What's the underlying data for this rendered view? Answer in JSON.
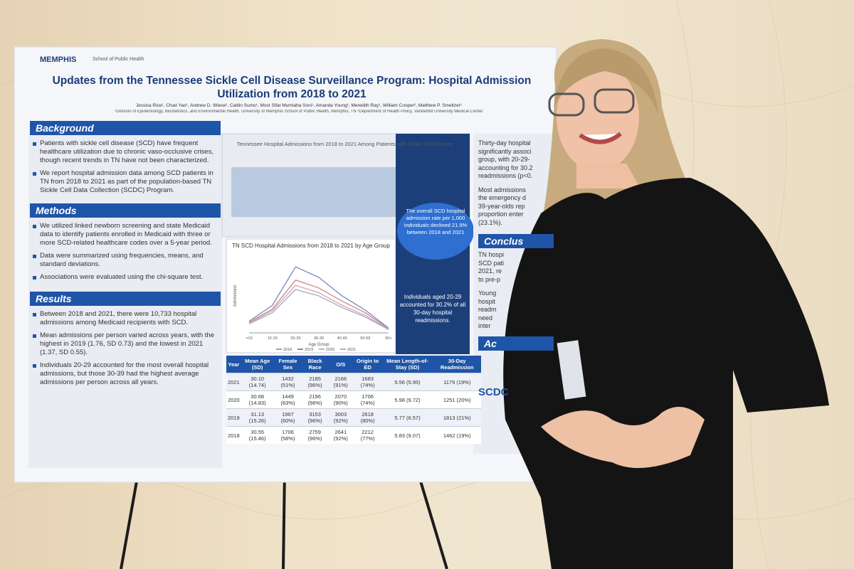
{
  "poster": {
    "logo": "MEMPHIS",
    "school": "School of Public Health",
    "title": "Updates from the Tennessee Sickle Cell Disease Surveillance Program: Hospital Admission Utilization from 2018 to 2021",
    "authors": "Jessica Rice¹, Chad Yao¹, Andrew D. Wiese², Caitlin Sumo¹, Most Sifat Mumtaha Soni¹, Amanda Young¹, Meredith Ray¹, William Cooper², Matthew P. Smeltzer¹",
    "affiliations": "¹Division of Epidemiology, Biostatistics, and Environmental Health, University of Memphis School of Public Health, Memphis, TN  ²Department of Health Policy, Vanderbilt University Medical Center",
    "sections": [
      {
        "heading": "Background",
        "items": [
          "Patients with sickle cell disease (SCD) have frequent healthcare utilization due to chronic vaso-occlusive crises, though recent trends in TN have not been characterized.",
          "We report hospital admission data among SCD patients in TN from 2018 to 2021 as part of the population-based TN Sickle Cell Data Collection (SCDC) Program."
        ]
      },
      {
        "heading": "Methods",
        "items": [
          "We utilized linked newborn screening and state Medicaid data to identify patients enrolled in Medicaid with three or more SCD-related healthcare codes over a 5-year period.",
          "Data were summarized using frequencies, means, and standard deviations.",
          "Associations were evaluated using the chi-square test."
        ]
      },
      {
        "heading": "Results",
        "items": [
          "Between 2018 and 2021, there were 10,733 hospital admissions among Medicaid recipients with SCD.",
          "Mean admissions per person varied across years, with the highest in 2019 (1.76, SD 0.73) and the lowest in 2021 (1.37, SD 0.55).",
          "Individuals 20-29 accounted for the most overall hospital admissions, but those 30-39 had the highest average admissions per person across all years."
        ]
      }
    ],
    "map_title": "Tennessee Hospital Admissions from 2018 to 2021 Among Patients with Sickle Cell Disease",
    "callout_rate": "The overall SCD hospital admission rate per 1,000 individuals declined 21.9% between 2018 and 2021",
    "callout_readmit": "Individuals aged 20-29 accounted for 30.2% of all 30-day hospital readmissions.",
    "chart": {
      "title": "TN SCD Hospital Admissions from 2018 to 2021 by Age Group",
      "xlabel": "Age Group",
      "ylabel": "Admissions",
      "categories": [
        "<10",
        "10-19",
        "20-29",
        "30-39",
        "40-49",
        "50-59",
        "60+"
      ],
      "ylim": [
        0,
        1400
      ],
      "series": [
        {
          "name": "2018",
          "color": "#c98f8f",
          "values": [
            200,
            450,
            1000,
            850,
            600,
            380,
            80
          ]
        },
        {
          "name": "2019",
          "color": "#7f8fc4",
          "values": [
            220,
            520,
            1250,
            1050,
            700,
            430,
            90
          ]
        },
        {
          "name": "2020",
          "color": "#d9a6b4",
          "values": [
            180,
            420,
            900,
            760,
            520,
            330,
            70
          ]
        },
        {
          "name": "2021",
          "color": "#a6aecb",
          "values": [
            170,
            380,
            820,
            700,
            480,
            300,
            60
          ]
        }
      ]
    },
    "table": {
      "header": [
        "Year",
        "Mean Age (SD)",
        "Female Sex",
        "Black Race",
        "O/S",
        "Origin to ED",
        "Mean Length-of-Stay (SD)",
        "30-Day Readmission"
      ],
      "rows": [
        [
          "2021",
          "30.10 (14.74)",
          "1432 (51%)",
          "2185 (96%)",
          "2166 (91%)",
          "1683 (74%)",
          "5.56 (5.95)",
          "1179 (19%)"
        ],
        [
          "2020",
          "30.68 (14.83)",
          "1449 (63%)",
          "2196 (96%)",
          "2070 (90%)",
          "1706 (74%)",
          "5.98 (9.72)",
          "1251 (20%)"
        ],
        [
          "2019",
          "31.13 (15.26)",
          "1967 (60%)",
          "3153 (96%)",
          "3003 (92%)",
          "2618 (80%)",
          "5.77 (6.57)",
          "1813 (21%)"
        ],
        [
          "2018",
          "30.55 (15.46)",
          "1706 (58%)",
          "2759 (96%)",
          "2641 (92%)",
          "2212 (77%)",
          "5.83 (9.07)",
          "1462 (19%)"
        ]
      ]
    },
    "right_column": {
      "results_lines": [
        "Thirty-day hospital",
        "significantly associ",
        "group, with 20-29-",
        "accounting for 30.2",
        "readmissions (p<0.",
        "Most admissions",
        "the emergency d",
        "39-year-olds rep",
        "proportion enter",
        "(23.1%)."
      ],
      "conclusions_heading": "Conclus",
      "conclusions_lines": [
        "TN hospi",
        "SCD pati",
        "2021, re",
        "to pre-p",
        "Young",
        "hospit",
        "readm",
        "need",
        "inter"
      ],
      "ack_heading": "Ac",
      "ack_logo": "SCDC"
    }
  }
}
